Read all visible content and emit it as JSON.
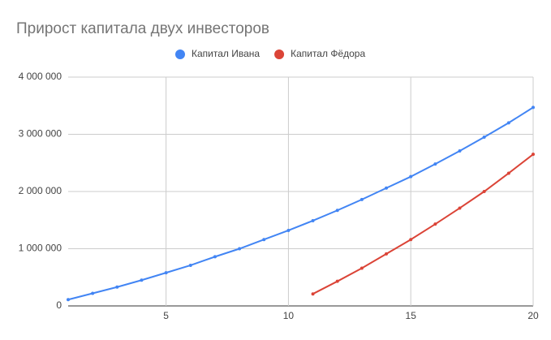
{
  "chart_data": {
    "type": "line",
    "title": "Прирост капитала двух инвесторов",
    "x": [
      1,
      2,
      3,
      4,
      5,
      6,
      7,
      8,
      9,
      10,
      11,
      12,
      13,
      14,
      15,
      16,
      17,
      18,
      19,
      20
    ],
    "series": [
      {
        "name": "Капитал Ивана",
        "color": "#4285f4",
        "values": [
          110000,
          220000,
          330000,
          450000,
          580000,
          710000,
          860000,
          1000000,
          1160000,
          1320000,
          1490000,
          1670000,
          1860000,
          2060000,
          2260000,
          2480000,
          2710000,
          2950000,
          3200000,
          3470000
        ]
      },
      {
        "name": "Капитал Фёдора",
        "color": "#db4437",
        "values": [
          null,
          null,
          null,
          null,
          null,
          null,
          null,
          null,
          null,
          null,
          210000,
          430000,
          660000,
          910000,
          1160000,
          1430000,
          1710000,
          2000000,
          2320000,
          2650000
        ]
      }
    ],
    "xlim": [
      1,
      20
    ],
    "xticks": [
      5,
      10,
      15,
      20
    ],
    "ylim": [
      0,
      4000000
    ],
    "yticks": [
      0,
      {
        "value": 1000000,
        "label": "1 000 000"
      },
      {
        "value": 2000000,
        "label": "2 000 000"
      },
      {
        "value": 3000000,
        "label": "3 000 000"
      },
      {
        "value": 4000000,
        "label": "4 000 000"
      }
    ],
    "grid": true,
    "legend": "top"
  }
}
